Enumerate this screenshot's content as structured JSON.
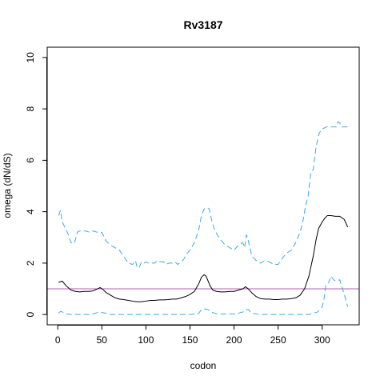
{
  "chart_data": {
    "type": "line",
    "title": "Rv3187",
    "xlabel": "codon",
    "ylabel": "omega (dN/dS)",
    "xlim": [
      -12,
      342
    ],
    "ylim": [
      -0.4,
      10.4
    ],
    "xticks": [
      0,
      50,
      100,
      150,
      200,
      250,
      300
    ],
    "yticks": [
      0,
      2,
      4,
      6,
      8,
      10
    ],
    "grid": false,
    "legend": "none",
    "reference_line": {
      "y": 1,
      "color": "#b05fb0"
    },
    "colors": {
      "estimate": "#000000",
      "bounds": "#3fa9e0"
    },
    "series": [
      {
        "role": "estimate",
        "style": "solid",
        "x": [
          1,
          5,
          10,
          15,
          20,
          25,
          30,
          35,
          40,
          45,
          48,
          52,
          55,
          60,
          65,
          70,
          75,
          80,
          85,
          90,
          95,
          100,
          105,
          110,
          115,
          120,
          125,
          130,
          135,
          140,
          145,
          150,
          155,
          160,
          163,
          166,
          168,
          170,
          173,
          176,
          180,
          185,
          190,
          195,
          200,
          205,
          210,
          213,
          216,
          220,
          225,
          230,
          235,
          240,
          245,
          250,
          255,
          260,
          265,
          270,
          275,
          280,
          285,
          290,
          293,
          296,
          300,
          303,
          306,
          310,
          315,
          320,
          325,
          329
        ],
        "y": [
          1.25,
          1.3,
          1.1,
          0.95,
          0.9,
          0.88,
          0.9,
          0.9,
          0.92,
          1.0,
          1.05,
          0.95,
          0.85,
          0.75,
          0.65,
          0.6,
          0.58,
          0.55,
          0.52,
          0.5,
          0.5,
          0.52,
          0.55,
          0.55,
          0.57,
          0.57,
          0.58,
          0.6,
          0.6,
          0.65,
          0.7,
          0.78,
          0.9,
          1.2,
          1.45,
          1.55,
          1.5,
          1.35,
          1.1,
          0.95,
          0.9,
          0.88,
          0.88,
          0.9,
          0.9,
          0.95,
          1.0,
          1.08,
          1.0,
          0.85,
          0.7,
          0.62,
          0.6,
          0.6,
          0.58,
          0.58,
          0.6,
          0.6,
          0.62,
          0.65,
          0.75,
          1.0,
          1.5,
          2.3,
          2.9,
          3.35,
          3.6,
          3.75,
          3.85,
          3.85,
          3.82,
          3.82,
          3.7,
          3.4
        ]
      },
      {
        "role": "upper bound",
        "style": "dashed",
        "x": [
          1,
          3,
          5,
          8,
          12,
          15,
          18,
          20,
          22,
          25,
          28,
          32,
          36,
          40,
          45,
          50,
          55,
          60,
          65,
          70,
          75,
          80,
          85,
          88,
          90,
          92,
          95,
          98,
          100,
          103,
          106,
          110,
          113,
          116,
          120,
          123,
          126,
          130,
          133,
          136,
          140,
          143,
          146,
          150,
          155,
          160,
          163,
          166,
          168,
          170,
          172,
          175,
          178,
          181,
          185,
          190,
          195,
          200,
          205,
          210,
          212,
          214,
          216,
          218,
          220,
          225,
          230,
          235,
          240,
          245,
          250,
          255,
          260,
          265,
          270,
          275,
          278,
          281,
          284,
          287,
          290,
          293,
          296,
          299,
          302,
          305,
          308,
          312,
          316,
          318,
          320,
          322,
          325,
          329
        ],
        "y": [
          3.85,
          4.05,
          3.6,
          3.4,
          3.1,
          2.8,
          2.75,
          2.9,
          3.2,
          3.25,
          3.25,
          3.25,
          3.2,
          3.25,
          3.2,
          3.2,
          2.85,
          2.7,
          2.6,
          2.5,
          2.25,
          2.0,
          1.95,
          2.1,
          1.85,
          1.8,
          2.05,
          2.0,
          2.05,
          2.0,
          2.0,
          2.0,
          2.1,
          2.05,
          2.05,
          1.95,
          2.0,
          2.0,
          2.05,
          1.95,
          2.05,
          2.15,
          2.35,
          2.5,
          2.8,
          3.3,
          3.85,
          4.1,
          4.15,
          4.15,
          4.1,
          3.6,
          3.3,
          3.1,
          2.9,
          2.7,
          2.6,
          2.5,
          2.7,
          2.8,
          2.6,
          3.1,
          2.9,
          2.6,
          2.3,
          2.1,
          2.0,
          2.1,
          2.05,
          1.95,
          1.95,
          2.2,
          2.4,
          2.5,
          2.8,
          3.2,
          3.6,
          4.2,
          4.6,
          5.5,
          5.65,
          6.5,
          7.0,
          7.2,
          7.25,
          7.3,
          7.3,
          7.3,
          7.3,
          7.5,
          7.45,
          7.3,
          7.3,
          7.3
        ]
      },
      {
        "role": "lower bound",
        "style": "dashed",
        "x": [
          1,
          3,
          5,
          8,
          10,
          15,
          20,
          25,
          30,
          35,
          40,
          45,
          50,
          55,
          60,
          70,
          80,
          90,
          100,
          110,
          120,
          130,
          140,
          150,
          160,
          163,
          166,
          170,
          174,
          178,
          182,
          190,
          200,
          205,
          210,
          213,
          216,
          220,
          230,
          240,
          250,
          260,
          270,
          280,
          285,
          290,
          295,
          300,
          302,
          304,
          307,
          310,
          313,
          316,
          320,
          322,
          325,
          329
        ],
        "y": [
          0.05,
          0.12,
          0.1,
          0.05,
          0.02,
          0.0,
          0.0,
          0.0,
          0.0,
          0.0,
          0.02,
          0.08,
          0.08,
          0.05,
          0.0,
          0.0,
          0.0,
          0.0,
          0.0,
          0.0,
          0.0,
          0.0,
          0.0,
          0.0,
          0.05,
          0.2,
          0.22,
          0.2,
          0.1,
          0.05,
          0.02,
          0.02,
          0.02,
          0.05,
          0.1,
          0.18,
          0.2,
          0.05,
          0.0,
          0.0,
          0.0,
          0.0,
          0.0,
          0.0,
          0.0,
          0.05,
          0.1,
          0.3,
          0.6,
          1.1,
          1.2,
          1.5,
          1.35,
          1.3,
          1.35,
          1.1,
          0.8,
          0.3
        ]
      }
    ]
  }
}
